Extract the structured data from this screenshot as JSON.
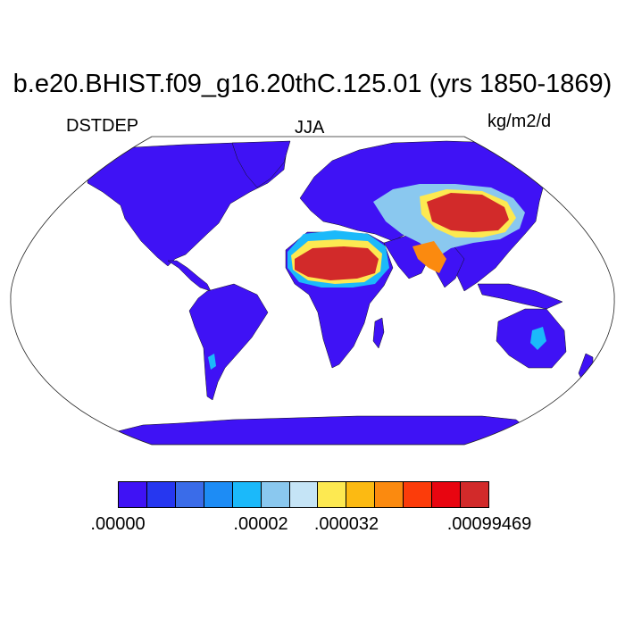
{
  "title": "b.e20.BHIST.f09_g16.20thC.125.01 (yrs 1850-1869)",
  "left_label": "DSTDEP",
  "center_label": "JJA",
  "right_label": "kg/m2/d",
  "colorbar": {
    "colors": [
      "#3f12f5",
      "#2637f0",
      "#3a6ce9",
      "#1d8cf5",
      "#1bb9fa",
      "#8ac8ef",
      "#c5e4f6",
      "#fde951",
      "#fcba12",
      "#fb8a0f",
      "#fc3c0a",
      "#e80510",
      "#d22a2a"
    ],
    "tick_labels": [
      ".00000",
      ".00002",
      ".000032",
      ".00099469"
    ]
  },
  "map_colors": {
    "background": "#3f12f5",
    "low_dust": "#1bb9fa",
    "moderate_dust": "#8ac8ef",
    "medium_dust": "#fde951",
    "high_dust": "#fb8a0f",
    "peak_dust": "#d22a2a",
    "ocean": "#ffffff"
  }
}
